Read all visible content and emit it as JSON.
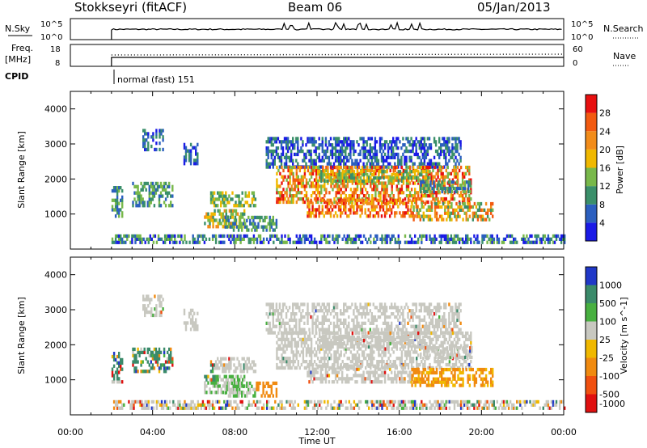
{
  "header": {
    "station": "Stokkseyri (fitACF)",
    "beam": "Beam 06",
    "date": "05/Jan/2013"
  },
  "top_panels": {
    "nsky": {
      "left_label": "N.Sky",
      "left_ticks": [
        "10^5",
        "10^0"
      ],
      "right_label": "N.Search",
      "right_ticks": [
        "10^5",
        "10^0"
      ]
    },
    "freq": {
      "left_label_1": "Freq.",
      "left_label_2": "[MHz]",
      "left_ticks": [
        "18",
        "8"
      ],
      "right_label": "Nave",
      "right_ticks": [
        "60",
        "0"
      ]
    },
    "cpid": {
      "label": "CPID",
      "value": "normal (fast) 151",
      "start_hour": 2
    }
  },
  "chart_data": [
    {
      "type": "heatmap",
      "title": "",
      "xlabel": "Time UT",
      "ylabel": "Slant Range [km]",
      "x_range_hours": [
        0,
        24
      ],
      "y_range_km": [
        0,
        4500
      ],
      "x_ticks": [
        "00:00",
        "04:00",
        "08:00",
        "12:00",
        "16:00",
        "20:00",
        "00:00"
      ],
      "y_ticks": [
        "1000",
        "2000",
        "3000",
        "4000"
      ],
      "colorbar": {
        "label": "Power [dB]",
        "ticks": [
          "4",
          "8",
          "12",
          "16",
          "20",
          "24",
          "28"
        ],
        "colors": [
          "#1a1ae6",
          "#2b5fbf",
          "#3a8f6a",
          "#78b84a",
          "#f0b800",
          "#f28c1a",
          "#f25a10",
          "#e81010"
        ]
      }
    },
    {
      "type": "heatmap",
      "title": "",
      "xlabel": "Time UT",
      "ylabel": "Slant Range [km]",
      "x_range_hours": [
        0,
        24
      ],
      "y_range_km": [
        0,
        4500
      ],
      "x_ticks": [
        "00:00",
        "04:00",
        "08:00",
        "12:00",
        "16:00",
        "20:00",
        "00:00"
      ],
      "y_ticks": [
        "1000",
        "2000",
        "3000",
        "4000"
      ],
      "colorbar": {
        "label": "Velocity [m s^-1]",
        "ticks": [
          "1000",
          "500",
          "100",
          "25",
          "-25",
          "-100",
          "-500",
          "-1000"
        ],
        "colors": [
          "#2038c8",
          "#3a8a6a",
          "#48b040",
          "#c8c8c0",
          "#f0b800",
          "#f08a10",
          "#f05010",
          "#e01010"
        ]
      }
    }
  ],
  "x_axis_title": "Time UT"
}
